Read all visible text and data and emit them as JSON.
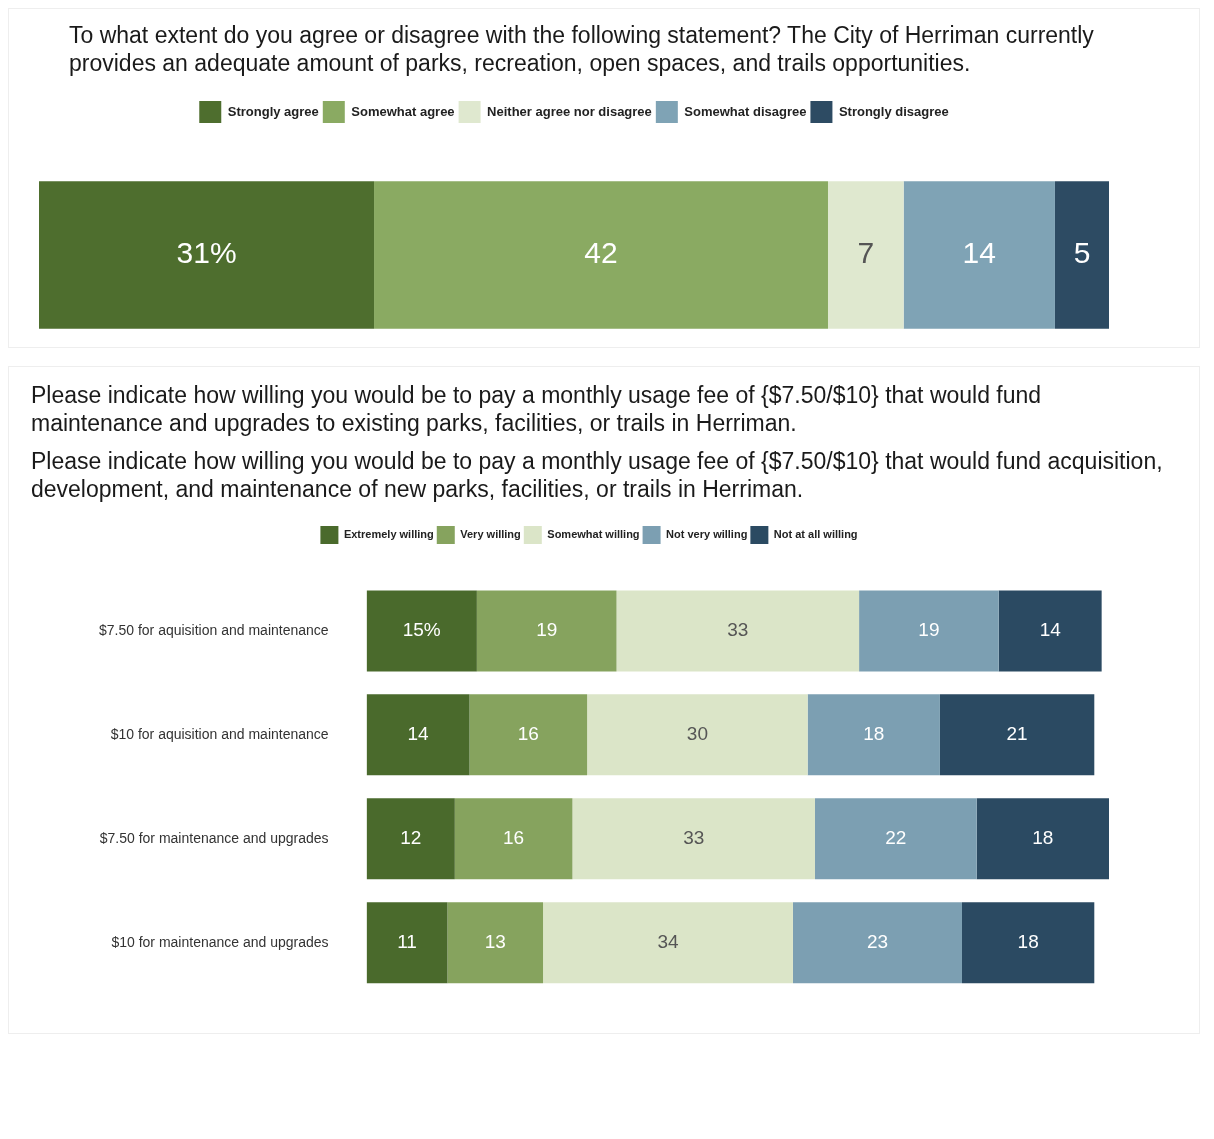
{
  "chart_data": [
    {
      "type": "bar",
      "title": "To what extent do you agree or disagree with the following statement? The City of Herriman currently provides an adequate amount of parks, recreation, open spaces, and trails opportunities.",
      "orientation": "horizontal",
      "stacked": true,
      "legend": "top",
      "tick_labels": false,
      "categories": [
        null
      ],
      "xlim": [
        0,
        99
      ],
      "series": [
        {
          "name": "Strongly agree",
          "color": "#4e6e2e",
          "values": [
            31
          ],
          "value_labels": [
            "31%"
          ]
        },
        {
          "name": "Somewhat agree",
          "color": "#8aaa62",
          "values": [
            42
          ],
          "value_labels": [
            "42"
          ]
        },
        {
          "name": "Neither agree nor disagree",
          "color": "#dfe8cf",
          "values": [
            7
          ],
          "value_labels": [
            "7"
          ]
        },
        {
          "name": "Somewhat disagree",
          "color": "#7fa3b5",
          "values": [
            14
          ],
          "value_labels": [
            "14"
          ]
        },
        {
          "name": "Strongly disagree",
          "color": "#2d4b63",
          "values": [
            5
          ],
          "value_labels": [
            "5"
          ]
        }
      ]
    },
    {
      "type": "bar",
      "title": "Please indicate how willing you would be to pay a monthly usage fee of {$7.50/$10} that would fund maintenance and upgrades to existing parks, facilities, or trails in Herriman.",
      "subtitle": "Please indicate how willing you would be to pay a monthly usage fee of {$7.50/$10} that would fund acquisition, development, and maintenance of new parks, facilities, or trails in Herriman.",
      "orientation": "horizontal",
      "stacked": true,
      "legend": "top",
      "tick_labels": "y",
      "categories": [
        "$7.50 for aquisition and maintenance",
        "$10 for aquisition and maintenance",
        "$7.50 for maintenance and upgrades",
        "$10 for maintenance and upgrades"
      ],
      "xlim": [
        0,
        101
      ],
      "series": [
        {
          "name": "Extremely willing",
          "color": "#4a6a2c",
          "values": [
            15,
            14,
            12,
            11
          ],
          "value_labels": [
            "15%",
            "14",
            "12",
            "11"
          ]
        },
        {
          "name": "Very willing",
          "color": "#86a35e",
          "values": [
            19,
            16,
            16,
            13
          ],
          "value_labels": [
            "19",
            "16",
            "16",
            "13"
          ]
        },
        {
          "name": "Somewhat willing",
          "color": "#dbe5c8",
          "values": [
            33,
            30,
            33,
            34
          ],
          "value_labels": [
            "33",
            "30",
            "33",
            "34"
          ]
        },
        {
          "name": "Not very willing",
          "color": "#7c9fb2",
          "values": [
            19,
            18,
            22,
            23
          ],
          "value_labels": [
            "19",
            "18",
            "22",
            "23"
          ]
        },
        {
          "name": "Not at all willing",
          "color": "#2b4a62",
          "values": [
            14,
            21,
            18,
            18
          ],
          "value_labels": [
            "14",
            "21",
            "18",
            "18"
          ]
        }
      ]
    }
  ]
}
